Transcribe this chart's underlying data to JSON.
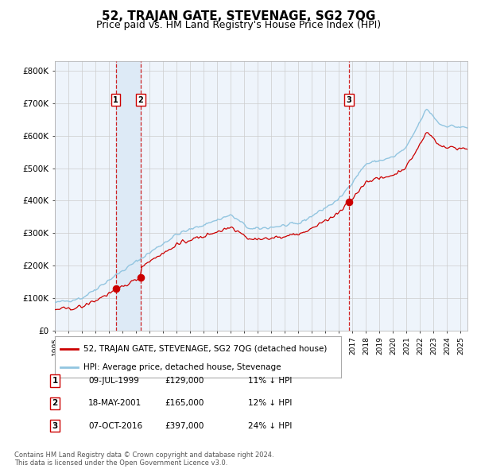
{
  "title": "52, TRAJAN GATE, STEVENAGE, SG2 7QG",
  "subtitle": "Price paid vs. HM Land Registry's House Price Index (HPI)",
  "legend_property": "52, TRAJAN GATE, STEVENAGE, SG2 7QG (detached house)",
  "legend_hpi": "HPI: Average price, detached house, Stevenage",
  "ylabel_ticks": [
    "£0",
    "£100K",
    "£200K",
    "£300K",
    "£400K",
    "£500K",
    "£600K",
    "£700K",
    "£800K"
  ],
  "ytick_values": [
    0,
    100000,
    200000,
    300000,
    400000,
    500000,
    600000,
    700000,
    800000
  ],
  "ylim": [
    0,
    830000
  ],
  "sale1_date": "09-JUL-1999",
  "sale1_price": 129000,
  "sale1_pct": "11%",
  "sale2_date": "18-MAY-2001",
  "sale2_price": 165000,
  "sale2_pct": "12%",
  "sale3_date": "07-OCT-2016",
  "sale3_price": 397000,
  "sale3_pct": "24%",
  "line_color_property": "#cc0000",
  "line_color_hpi": "#92C5E0",
  "dot_color": "#cc0000",
  "vline_color": "#cc0000",
  "shade_color": "#ddeaf6",
  "grid_color": "#cccccc",
  "fig_bg_color": "#ffffff",
  "plot_bg_color": "#eef4fb",
  "title_fontsize": 11,
  "subtitle_fontsize": 9,
  "copyright_text": "Contains HM Land Registry data © Crown copyright and database right 2024.\nThis data is licensed under the Open Government Licence v3.0.",
  "x_start_year": 1995.0,
  "x_end_year": 2025.5
}
